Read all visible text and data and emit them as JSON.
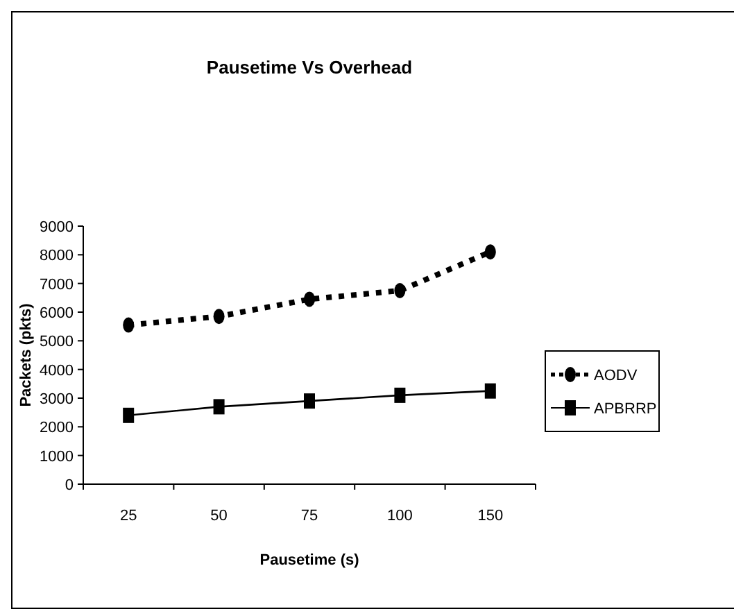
{
  "chart_data": {
    "type": "line",
    "title": "Pausetime Vs Overhead",
    "xlabel": "Pausetime (s)",
    "ylabel": "Packets (pkts)",
    "categories": [
      "25",
      "50",
      "75",
      "100",
      "150"
    ],
    "ylim": [
      0,
      9000
    ],
    "yticks": [
      0,
      1000,
      2000,
      3000,
      4000,
      5000,
      6000,
      7000,
      8000,
      9000
    ],
    "grid": false,
    "legend": "right",
    "series": [
      {
        "name": "AODV",
        "color": "#000000",
        "values": [
          5550,
          5850,
          6450,
          6750,
          8100
        ],
        "marker": "circle",
        "line_style": "dotted"
      },
      {
        "name": "APBRRP",
        "color": "#000000",
        "values": [
          2400,
          2700,
          2900,
          3100,
          3250
        ],
        "marker": "square",
        "line_style": "solid"
      }
    ]
  }
}
